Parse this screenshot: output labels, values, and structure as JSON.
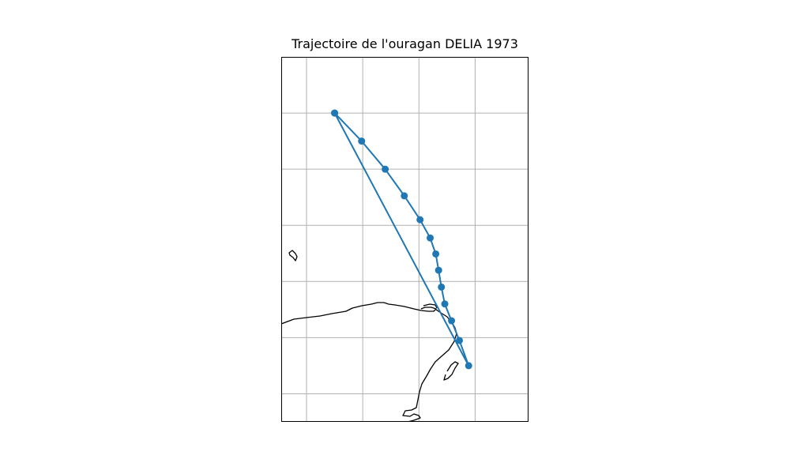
{
  "title": "Trajectoire de l'ouragan DELIA 1973",
  "colors": {
    "track": "#1f77b4",
    "coast": "#000000",
    "grid": "#b0b0b0",
    "frame": "#000000"
  },
  "map": {
    "grid": true,
    "gridlines_lon": [
      -94,
      -92,
      -90,
      -88,
      -86
    ],
    "gridlines_lat": [
      31,
      29,
      27,
      25,
      23,
      21,
      19
    ],
    "track_points": [
      {
        "lon": -93.0,
        "lat": 29.0
      },
      {
        "lon": -92.04,
        "lat": 28.0
      },
      {
        "lon": -91.2,
        "lat": 27.0
      },
      {
        "lon": -90.52,
        "lat": 26.05
      },
      {
        "lon": -89.96,
        "lat": 25.2
      },
      {
        "lon": -89.6,
        "lat": 24.55
      },
      {
        "lon": -89.4,
        "lat": 23.98
      },
      {
        "lon": -89.3,
        "lat": 23.4
      },
      {
        "lon": -89.2,
        "lat": 22.8
      },
      {
        "lon": -89.08,
        "lat": 22.2
      },
      {
        "lon": -88.84,
        "lat": 21.6
      },
      {
        "lon": -88.56,
        "lat": 20.9
      },
      {
        "lon": -88.23,
        "lat": 20.0
      },
      {
        "lon": -93.0,
        "lat": 29.0
      }
    ]
  }
}
